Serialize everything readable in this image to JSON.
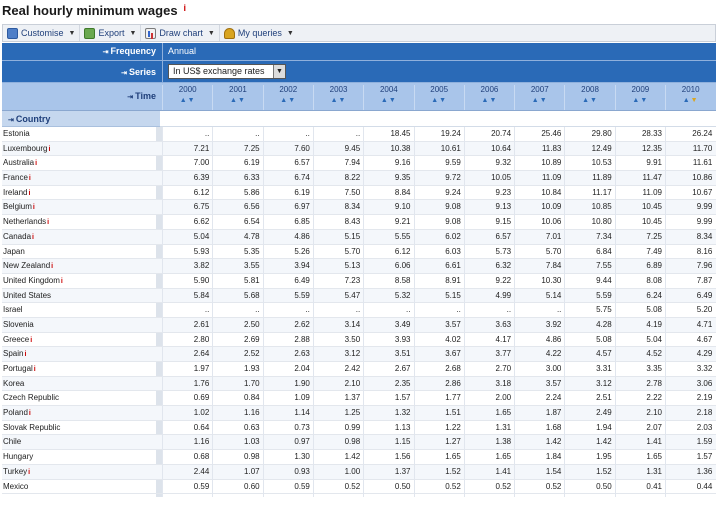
{
  "page": {
    "title": "Real hourly minimum wages",
    "title_info": "i"
  },
  "toolbar": {
    "customise": "Customise",
    "export": "Export",
    "draw_chart": "Draw chart",
    "my_queries": "My queries"
  },
  "dimensions": {
    "frequency_label": "Frequency",
    "frequency_value": "Annual",
    "series_label": "Series",
    "series_value": "In US$ exchange rates",
    "time_label": "Time",
    "country_label": "Country"
  },
  "years": [
    "2000",
    "2001",
    "2002",
    "2003",
    "2004",
    "2005",
    "2006",
    "2007",
    "2008",
    "2009",
    "2010"
  ],
  "rows": [
    {
      "country": "Estonia",
      "flag": false,
      "values": [
        "..",
        "..",
        "..",
        "..",
        "18.45",
        "19.24",
        "20.74",
        "25.46",
        "29.80",
        "28.33",
        "26.24"
      ]
    },
    {
      "country": "Luxembourg",
      "flag": true,
      "values": [
        "7.21",
        "7.25",
        "7.60",
        "9.45",
        "10.38",
        "10.61",
        "10.64",
        "11.83",
        "12.49",
        "12.35",
        "11.70"
      ]
    },
    {
      "country": "Australia",
      "flag": true,
      "values": [
        "7.00",
        "6.19",
        "6.57",
        "7.94",
        "9.16",
        "9.59",
        "9.32",
        "10.89",
        "10.53",
        "9.91",
        "11.61"
      ]
    },
    {
      "country": "France",
      "flag": true,
      "values": [
        "6.39",
        "6.33",
        "6.74",
        "8.22",
        "9.35",
        "9.72",
        "10.05",
        "11.09",
        "11.89",
        "11.47",
        "10.86"
      ]
    },
    {
      "country": "Ireland",
      "flag": true,
      "values": [
        "6.12",
        "5.86",
        "6.19",
        "7.50",
        "8.84",
        "9.24",
        "9.23",
        "10.84",
        "11.17",
        "11.09",
        "10.67"
      ]
    },
    {
      "country": "Belgium",
      "flag": true,
      "values": [
        "6.75",
        "6.56",
        "6.97",
        "8.34",
        "9.10",
        "9.08",
        "9.13",
        "10.09",
        "10.85",
        "10.45",
        "9.99"
      ]
    },
    {
      "country": "Netherlands",
      "flag": true,
      "values": [
        "6.62",
        "6.54",
        "6.85",
        "8.43",
        "9.21",
        "9.08",
        "9.15",
        "10.06",
        "10.80",
        "10.45",
        "9.99"
      ]
    },
    {
      "country": "Canada",
      "flag": true,
      "values": [
        "5.04",
        "4.78",
        "4.86",
        "5.15",
        "5.55",
        "6.02",
        "6.57",
        "7.01",
        "7.34",
        "7.25",
        "8.34"
      ]
    },
    {
      "country": "Japan",
      "flag": false,
      "values": [
        "5.93",
        "5.35",
        "5.26",
        "5.70",
        "6.12",
        "6.03",
        "5.73",
        "5.70",
        "6.84",
        "7.49",
        "8.16"
      ]
    },
    {
      "country": "New Zealand",
      "flag": true,
      "values": [
        "3.82",
        "3.55",
        "3.94",
        "5.13",
        "6.06",
        "6.61",
        "6.32",
        "7.84",
        "7.55",
        "6.89",
        "7.96"
      ]
    },
    {
      "country": "United Kingdom",
      "flag": true,
      "values": [
        "5.90",
        "5.81",
        "6.49",
        "7.23",
        "8.58",
        "8.91",
        "9.22",
        "10.30",
        "9.44",
        "8.08",
        "7.87"
      ]
    },
    {
      "country": "United States",
      "flag": false,
      "values": [
        "5.84",
        "5.68",
        "5.59",
        "5.47",
        "5.32",
        "5.15",
        "4.99",
        "5.14",
        "5.59",
        "6.24",
        "6.49"
      ]
    },
    {
      "country": "Israel",
      "flag": false,
      "values": [
        "..",
        "..",
        "..",
        "..",
        "..",
        "..",
        "..",
        "..",
        "5.75",
        "5.08",
        "5.20"
      ]
    },
    {
      "country": "Slovenia",
      "flag": false,
      "values": [
        "2.61",
        "2.50",
        "2.62",
        "3.14",
        "3.49",
        "3.57",
        "3.63",
        "3.92",
        "4.28",
        "4.19",
        "4.71"
      ]
    },
    {
      "country": "Greece",
      "flag": true,
      "values": [
        "2.80",
        "2.69",
        "2.88",
        "3.50",
        "3.93",
        "4.02",
        "4.17",
        "4.86",
        "5.08",
        "5.04",
        "4.67"
      ]
    },
    {
      "country": "Spain",
      "flag": true,
      "values": [
        "2.64",
        "2.52",
        "2.63",
        "3.12",
        "3.51",
        "3.67",
        "3.77",
        "4.22",
        "4.57",
        "4.52",
        "4.29"
      ]
    },
    {
      "country": "Portugal",
      "flag": true,
      "values": [
        "1.97",
        "1.93",
        "2.04",
        "2.42",
        "2.67",
        "2.68",
        "2.70",
        "3.00",
        "3.31",
        "3.35",
        "3.32"
      ]
    },
    {
      "country": "Korea",
      "flag": false,
      "values": [
        "1.76",
        "1.70",
        "1.90",
        "2.10",
        "2.35",
        "2.86",
        "3.18",
        "3.57",
        "3.12",
        "2.78",
        "3.06"
      ]
    },
    {
      "country": "Czech Republic",
      "flag": false,
      "values": [
        "0.69",
        "0.84",
        "1.09",
        "1.37",
        "1.57",
        "1.77",
        "2.00",
        "2.24",
        "2.51",
        "2.22",
        "2.19"
      ]
    },
    {
      "country": "Poland",
      "flag": true,
      "values": [
        "1.02",
        "1.16",
        "1.14",
        "1.25",
        "1.32",
        "1.51",
        "1.65",
        "1.87",
        "2.49",
        "2.10",
        "2.18"
      ]
    },
    {
      "country": "Slovak Republic",
      "flag": false,
      "values": [
        "0.64",
        "0.63",
        "0.73",
        "0.99",
        "1.13",
        "1.22",
        "1.31",
        "1.68",
        "1.94",
        "2.07",
        "2.03"
      ]
    },
    {
      "country": "Chile",
      "flag": false,
      "values": [
        "1.16",
        "1.03",
        "0.97",
        "0.98",
        "1.15",
        "1.27",
        "1.38",
        "1.42",
        "1.42",
        "1.41",
        "1.59"
      ]
    },
    {
      "country": "Hungary",
      "flag": false,
      "values": [
        "0.68",
        "0.98",
        "1.30",
        "1.42",
        "1.56",
        "1.65",
        "1.65",
        "1.84",
        "1.95",
        "1.65",
        "1.57"
      ]
    },
    {
      "country": "Turkey",
      "flag": true,
      "values": [
        "2.44",
        "1.07",
        "0.93",
        "1.00",
        "1.37",
        "1.52",
        "1.41",
        "1.54",
        "1.52",
        "1.31",
        "1.36"
      ]
    },
    {
      "country": "Mexico",
      "flag": false,
      "values": [
        "0.59",
        "0.60",
        "0.59",
        "0.52",
        "0.50",
        "0.52",
        "0.52",
        "0.52",
        "0.50",
        "0.41",
        "0.44"
      ]
    }
  ]
}
